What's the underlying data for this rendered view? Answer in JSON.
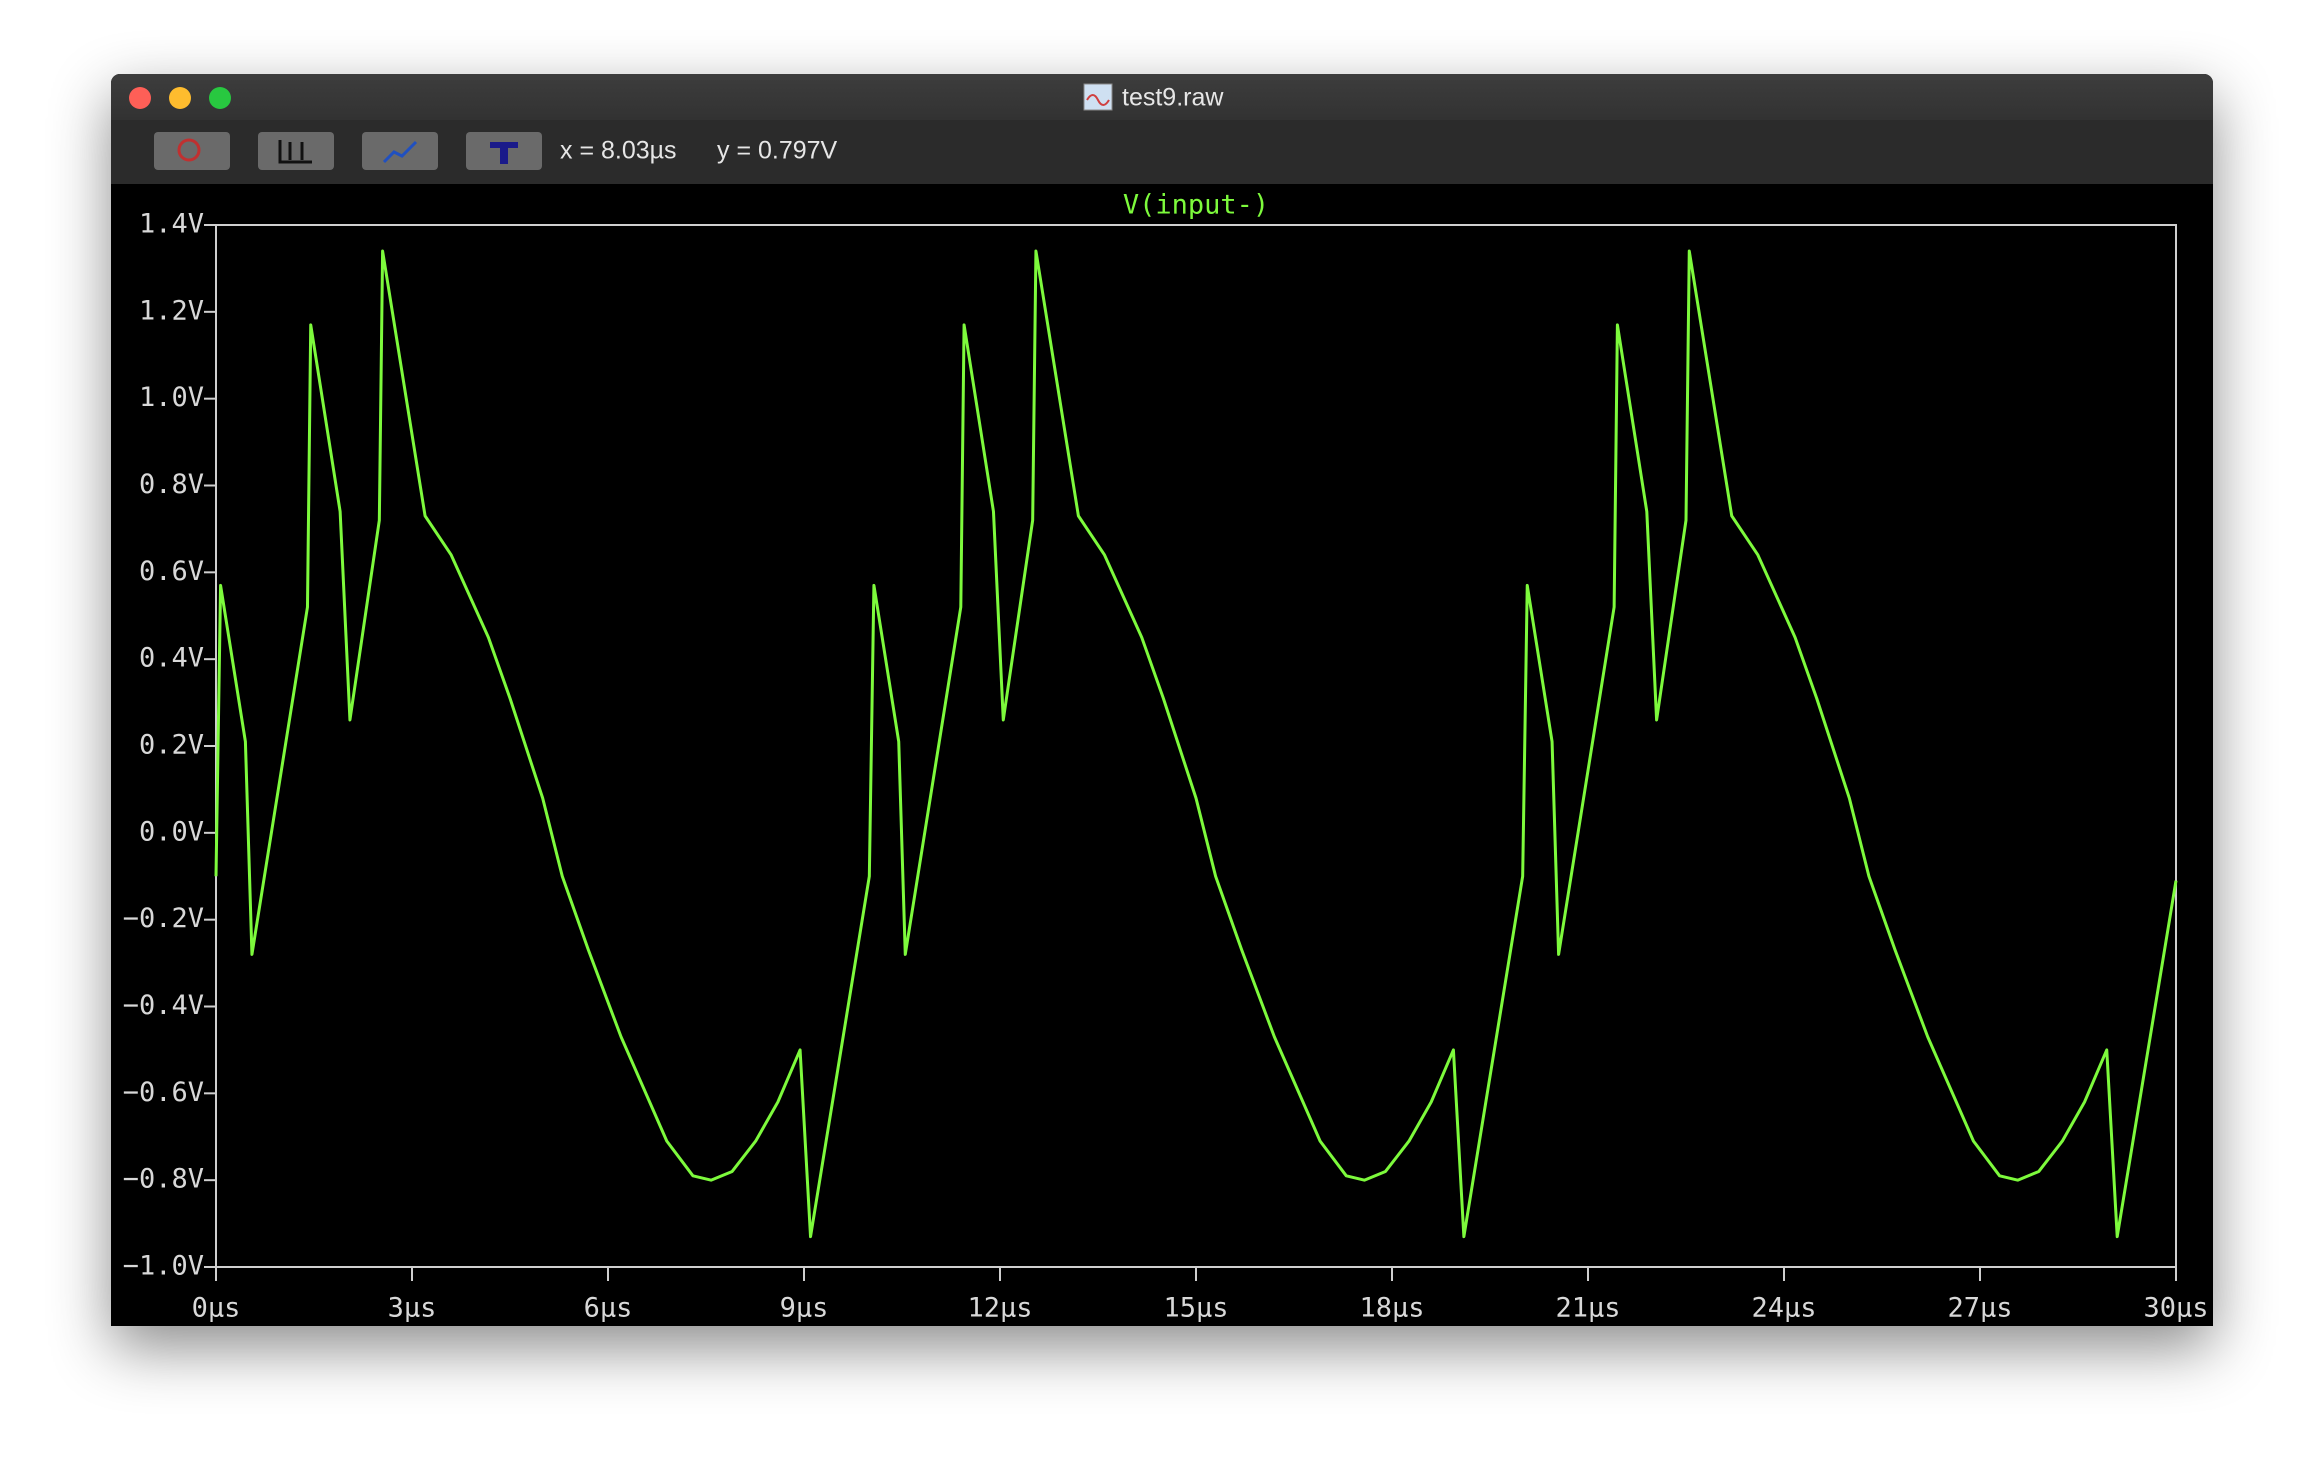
{
  "window": {
    "title": "test9.raw",
    "cursor_x": "x = 8.03µs",
    "cursor_y": "y = 0.797V"
  },
  "chart_data": {
    "type": "line",
    "x": [
      0,
      0.07,
      0.45,
      0.55,
      1.4,
      1.45,
      1.9,
      2.05,
      2.5,
      2.55,
      3.2,
      3.6,
      4.17,
      4.5,
      5.0,
      5.3,
      5.7,
      6.2,
      6.9,
      7.3,
      7.58,
      7.9,
      8.26,
      8.6,
      8.94,
      9.1,
      10,
      10.07,
      10.45,
      10.55,
      11.4,
      11.45,
      11.9,
      12.05,
      12.5,
      12.55,
      13.2,
      13.6,
      14.17,
      14.5,
      15.0,
      15.3,
      15.7,
      16.2,
      16.9,
      17.3,
      17.58,
      17.9,
      18.26,
      18.6,
      18.94,
      19.1,
      20,
      20.07,
      20.45,
      20.55,
      21.4,
      21.45,
      21.9,
      22.05,
      22.5,
      22.55,
      23.2,
      23.6,
      24.17,
      24.5,
      25.0,
      25.3,
      25.7,
      26.2,
      26.9,
      27.3,
      27.58,
      27.9,
      28.26,
      28.6,
      28.94,
      29.1,
      30
    ],
    "series": [
      {
        "name": "V(input-)",
        "color": "#7dfa3c",
        "values": [
          -0.1,
          0.57,
          0.21,
          -0.28,
          0.52,
          1.17,
          0.74,
          0.26,
          0.72,
          1.34,
          0.73,
          0.64,
          0.45,
          0.31,
          0.08,
          -0.1,
          -0.27,
          -0.47,
          -0.71,
          -0.79,
          -0.8,
          -0.78,
          -0.71,
          -0.62,
          -0.5,
          -0.93,
          -0.1,
          0.57,
          0.21,
          -0.28,
          0.52,
          1.17,
          0.74,
          0.26,
          0.72,
          1.34,
          0.73,
          0.64,
          0.45,
          0.31,
          0.08,
          -0.1,
          -0.27,
          -0.47,
          -0.71,
          -0.79,
          -0.8,
          -0.78,
          -0.71,
          -0.62,
          -0.5,
          -0.93,
          -0.1,
          0.57,
          0.21,
          -0.28,
          0.52,
          1.17,
          0.74,
          0.26,
          0.72,
          1.34,
          0.73,
          0.64,
          0.45,
          0.31,
          0.08,
          -0.1,
          -0.27,
          -0.47,
          -0.71,
          -0.79,
          -0.8,
          -0.78,
          -0.71,
          -0.62,
          -0.5,
          -0.93,
          -0.11
        ]
      }
    ],
    "xlim": [
      0,
      30
    ],
    "xticks": [
      {
        "value": 0,
        "label": "0µs"
      },
      {
        "value": 3,
        "label": "3µs"
      },
      {
        "value": 6,
        "label": "6µs"
      },
      {
        "value": 9,
        "label": "9µs"
      },
      {
        "value": 12,
        "label": "12µs"
      },
      {
        "value": 15,
        "label": "15µs"
      },
      {
        "value": 18,
        "label": "18µs"
      },
      {
        "value": 21,
        "label": "21µs"
      },
      {
        "value": 24,
        "label": "24µs"
      },
      {
        "value": 27,
        "label": "27µs"
      },
      {
        "value": 30,
        "label": "30µs"
      }
    ],
    "ylim": [
      -1.0,
      1.4
    ],
    "yticks": [
      {
        "value": 1.4,
        "label": "1.4V"
      },
      {
        "value": 1.2,
        "label": "1.2V"
      },
      {
        "value": 1.0,
        "label": "1.0V"
      },
      {
        "value": 0.8,
        "label": "0.8V"
      },
      {
        "value": 0.6,
        "label": "0.6V"
      },
      {
        "value": 0.4,
        "label": "0.4V"
      },
      {
        "value": 0.2,
        "label": "0.2V"
      },
      {
        "value": 0.0,
        "label": "0.0V"
      },
      {
        "value": -0.2,
        "label": "−0.2V"
      },
      {
        "value": -0.4,
        "label": "−0.4V"
      },
      {
        "value": -0.6,
        "label": "−0.6V"
      },
      {
        "value": -0.8,
        "label": "−0.8V"
      },
      {
        "value": -1.0,
        "label": "−1.0V"
      }
    ],
    "grid": false
  }
}
